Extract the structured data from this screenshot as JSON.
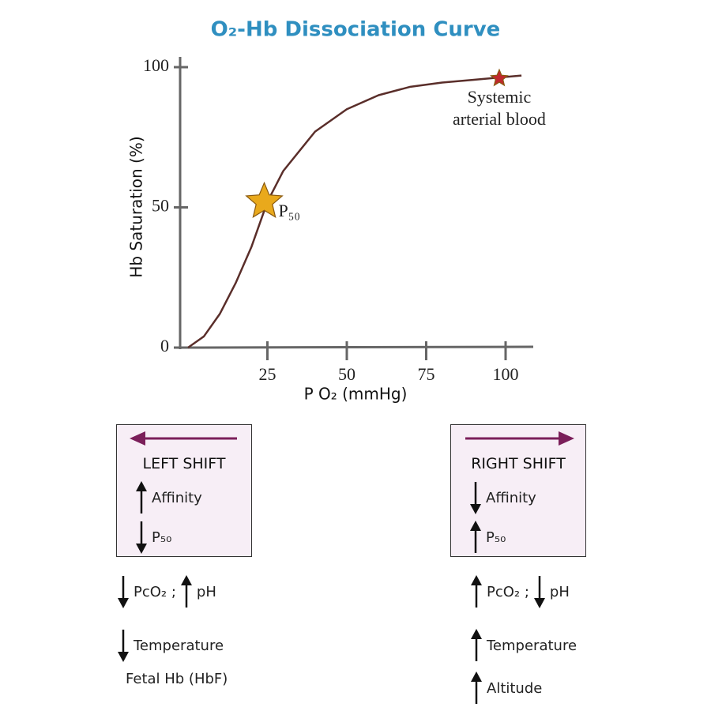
{
  "chart_data": {
    "type": "line",
    "title": "O₂-Hb Dissociation Curve",
    "x_label": "P O₂  (mmHg)",
    "y_label": "Hb Saturation (%)",
    "x": [
      0,
      5,
      10,
      15,
      20,
      25,
      30,
      40,
      50,
      60,
      70,
      80,
      90,
      100,
      105
    ],
    "series": [
      {
        "color": "#5a2e2a",
        "values": [
          0,
          4,
          12,
          23,
          36,
          52,
          63,
          77,
          85,
          90,
          93,
          94.5,
          95.5,
          96.5,
          97
        ]
      }
    ],
    "xlim": [
      0,
      110
    ],
    "ylim": [
      0,
      104
    ],
    "xticks": [
      25,
      50,
      75,
      100
    ],
    "yticks": [
      0,
      50,
      100
    ],
    "points": [
      {
        "label": "P₅₀",
        "x": 24,
        "y": 52,
        "color": "#e9a91c"
      },
      {
        "label": "Systemic arterial blood",
        "x": 98,
        "y": 96,
        "color": "#c0282d"
      }
    ]
  },
  "shifts": [
    {
      "heading": "LEFT SHIFT",
      "arrow": "left",
      "effects": [
        {
          "dir": "up",
          "text": "Affinity"
        },
        {
          "dir": "down",
          "text": "P₅₀"
        }
      ],
      "causes": [
        [
          {
            "dir": "down",
            "text": "PcO₂ ;"
          },
          {
            "dir": "up",
            "text": "pH"
          }
        ],
        [
          {
            "dir": "down",
            "text": "Temperature"
          }
        ],
        [
          {
            "text": "Fetal Hb (HbF)"
          }
        ]
      ]
    },
    {
      "heading": "RIGHT SHIFT",
      "arrow": "right",
      "effects": [
        {
          "dir": "down",
          "text": "Affinity"
        },
        {
          "dir": "up",
          "text": "P₅₀"
        }
      ],
      "causes": [
        [
          {
            "dir": "up",
            "text": "PcO₂ ;"
          },
          {
            "dir": "down",
            "text": "pH"
          }
        ],
        [
          {
            "dir": "up",
            "text": "Temperature"
          }
        ],
        [
          {
            "dir": "up",
            "text": "Altitude"
          }
        ]
      ]
    }
  ]
}
